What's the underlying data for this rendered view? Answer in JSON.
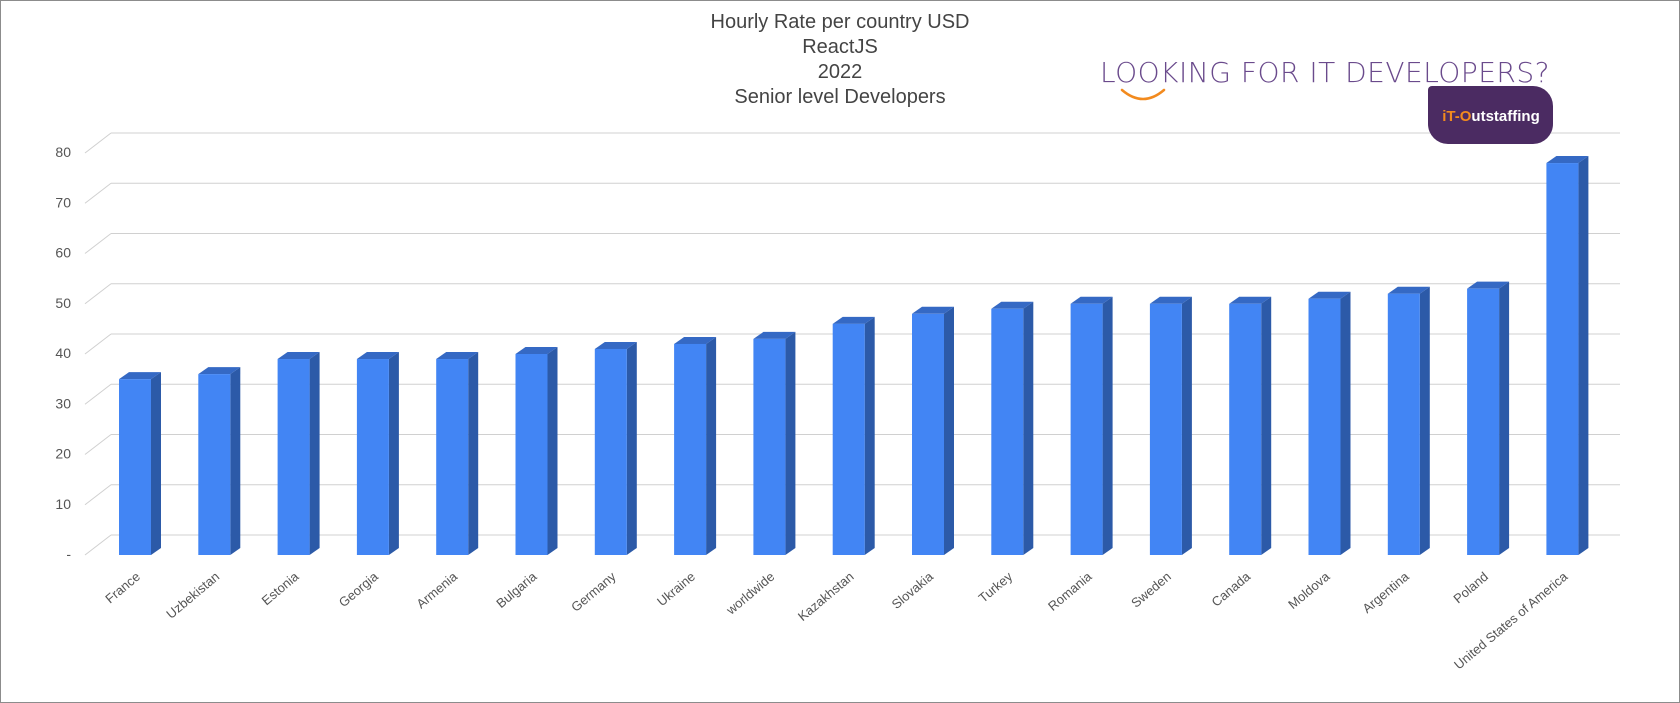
{
  "chart_data": {
    "type": "bar",
    "title_lines": [
      "Hourly Rate per country USD",
      "ReactJS",
      "2022",
      "Senior level Developers"
    ],
    "categories": [
      "France",
      "Uzbekistan",
      "Estonia",
      "Georgia",
      "Armenia",
      "Bulgaria",
      "Germany",
      "Ukraine",
      "worldwide",
      "Kazakhstan",
      "Slovakia",
      "Turkey",
      "Romania",
      "Sweden",
      "Canada",
      "Moldova",
      "Argentina",
      "Poland",
      "United States of America"
    ],
    "values": [
      35,
      36,
      39,
      39,
      39,
      40,
      41,
      42,
      43,
      46,
      48,
      49,
      50,
      50,
      50,
      51,
      52,
      53,
      78
    ],
    "y_ticks": [
      "-",
      "10",
      "20",
      "30",
      "40",
      "50",
      "60",
      "70",
      "80"
    ],
    "ylim": [
      0,
      80
    ],
    "grid": true,
    "bar_color": "#4285f4",
    "bar_side_color": "#2c5aa8",
    "bar_top_color": "#3569c4"
  },
  "logo": {
    "headline": "LOOKING FOR IT DEVELOPERS?",
    "badge_prefix": "iT-O",
    "badge_rest": "utstaffing",
    "headline_color": "#6a4a8c",
    "smile_color": "#f28a1e",
    "badge_color": "#4b2b62"
  }
}
